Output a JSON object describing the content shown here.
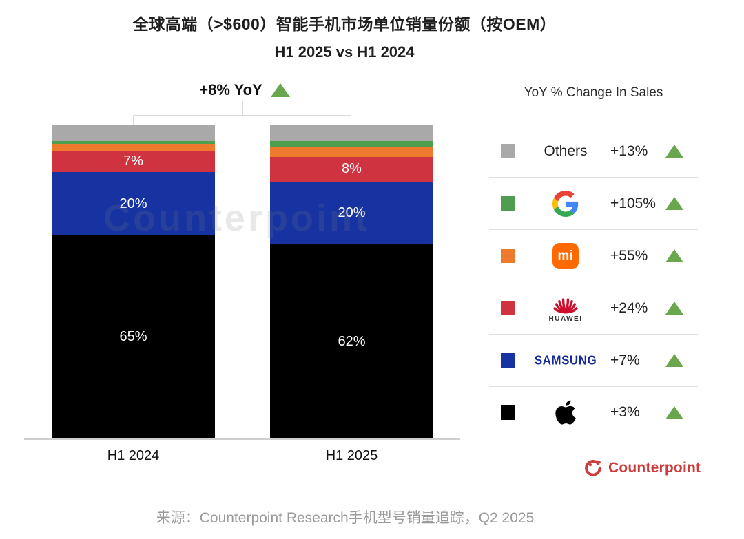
{
  "header": {
    "title": "全球高端（>$600）智能手机市场单位销量份额（按OEM）",
    "subtitle": "H1 2025 vs H1 2024"
  },
  "chart_data": {
    "type": "bar",
    "subtype": "stacked-100-percent",
    "title": "全球高端（>$600）智能手机市场单位销量份额（按OEM）H1 2025 vs H1 2024",
    "categories": [
      "H1 2024",
      "H1 2025"
    ],
    "ylim": [
      0,
      100
    ],
    "grid": false,
    "annotation": {
      "text": "+8% YoY",
      "direction": "up"
    },
    "series": [
      {
        "name": "Apple",
        "values": [
          65,
          62
        ],
        "labels": [
          "65%",
          "62%"
        ],
        "color": "#000000"
      },
      {
        "name": "Samsung",
        "values": [
          20,
          20
        ],
        "labels": [
          "20%",
          "20%"
        ],
        "color": "#1733a1"
      },
      {
        "name": "Huawei",
        "values": [
          7,
          8
        ],
        "labels": [
          "7%",
          "8%"
        ],
        "color": "#cf3340"
      },
      {
        "name": "Xiaomi",
        "values": [
          2,
          3
        ],
        "labels": [
          null,
          null
        ],
        "color": "#ee7b2d"
      },
      {
        "name": "Google",
        "values": [
          1,
          2
        ],
        "labels": [
          null,
          null
        ],
        "color": "#4f9e4f"
      },
      {
        "name": "Others",
        "values": [
          5,
          5
        ],
        "labels": [
          null,
          null
        ],
        "color": "#a9a9a9"
      }
    ]
  },
  "legend": {
    "title": "YoY % Change In Sales",
    "rows": [
      {
        "oem": "Others",
        "display_text": "Others",
        "change": "+13%",
        "swatch_icon": "gray-square",
        "direction": "up"
      },
      {
        "oem": "Google",
        "logo_icon": "google-g-logo",
        "change": "+105%",
        "swatch_icon": "green-square",
        "direction": "up"
      },
      {
        "oem": "Xiaomi",
        "logo_icon": "xiaomi-mi-logo",
        "logo_text": "mi",
        "change": "+55%",
        "swatch_icon": "orange-square",
        "direction": "up"
      },
      {
        "oem": "Huawei",
        "logo_icon": "huawei-flower-logo",
        "logo_caption": "HUAWEI",
        "change": "+24%",
        "swatch_icon": "red-square",
        "direction": "up"
      },
      {
        "oem": "Samsung",
        "display_text": "SAMSUNG",
        "change": "+7%",
        "swatch_icon": "blue-square",
        "direction": "up"
      },
      {
        "oem": "Apple",
        "logo_icon": "apple-logo",
        "change": "+3%",
        "swatch_icon": "black-square",
        "direction": "up"
      }
    ]
  },
  "oem_colors": {
    "others": "#a9a9a9",
    "google": "#4f9e4f",
    "xiaomi": "#ee7b2d",
    "huawei": "#cf3340",
    "samsung": "#1733a1",
    "apple": "#000000"
  },
  "colors": {
    "triangle_green": "#69a64d",
    "samsung_wordmark_blue": "#1428a0",
    "counterpoint_red": "#cc3e3e"
  },
  "watermark": "Counterpoint",
  "branding": {
    "logo_text": "Counterpoint"
  },
  "footer": {
    "source": "来源：Counterpoint Research手机型号销量追踪，Q2 2025"
  }
}
